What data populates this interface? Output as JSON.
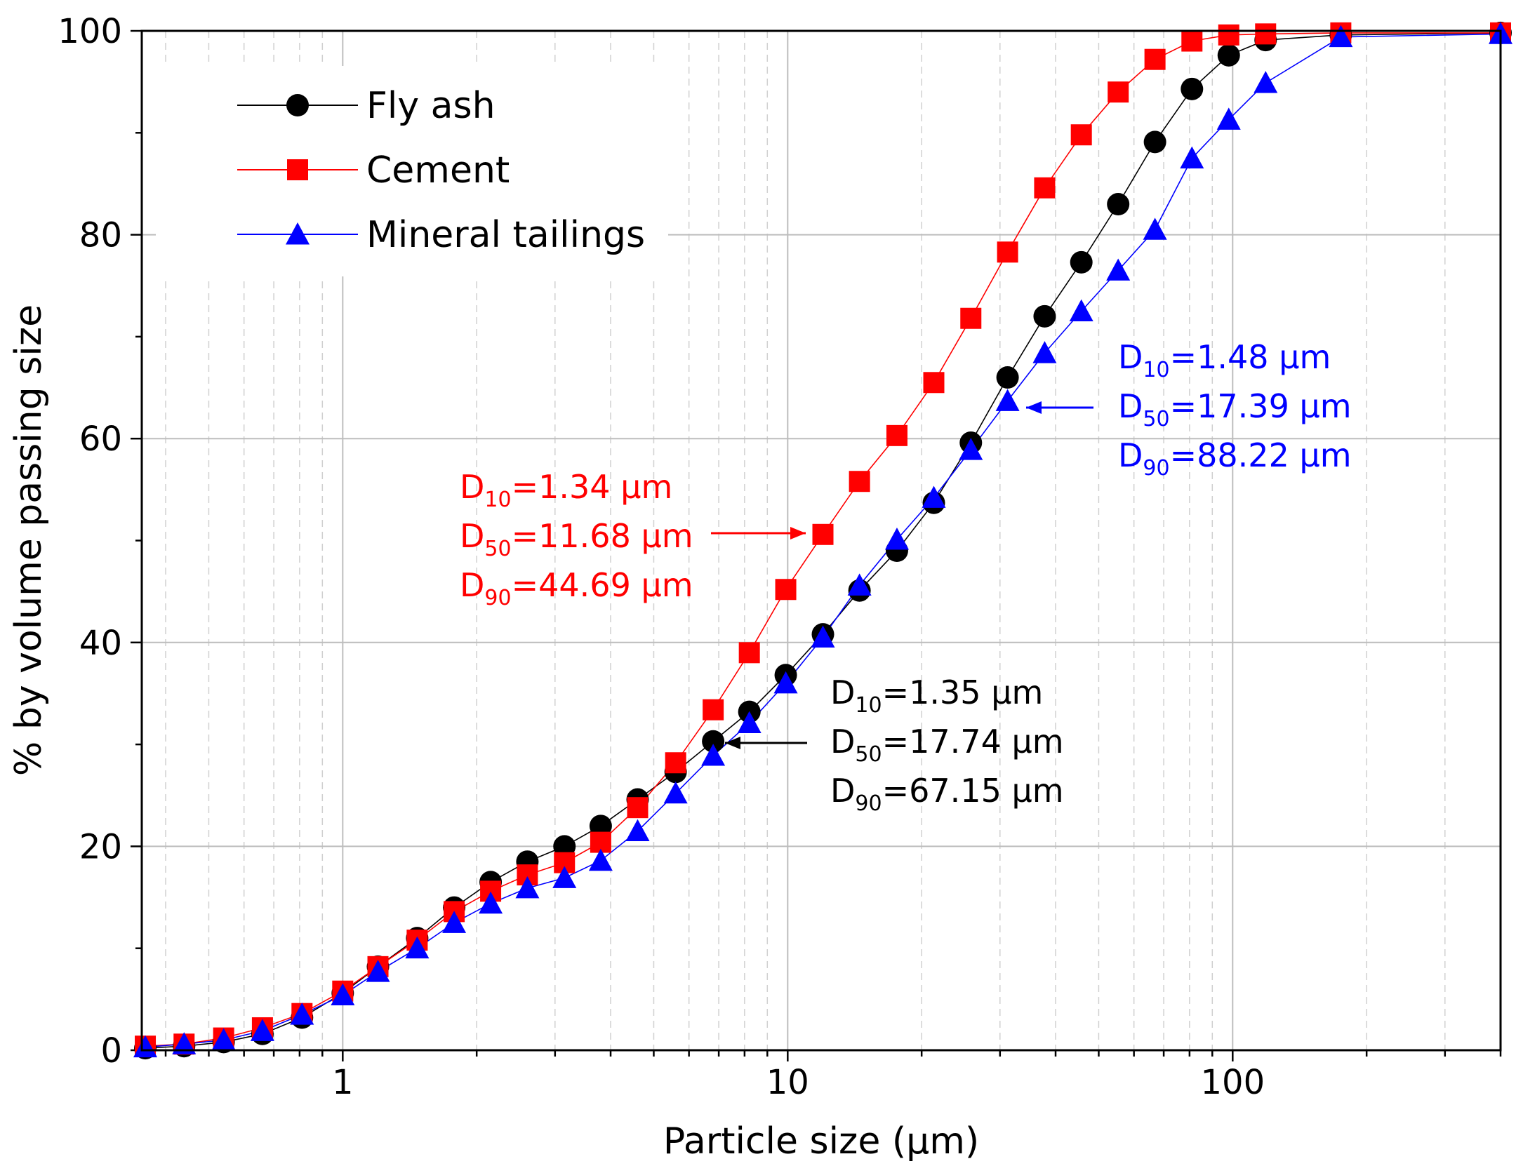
{
  "chart_data": {
    "type": "scatter",
    "title": "",
    "xlabel": "Particle size (µm)",
    "ylabel": "% by volume passing size",
    "xscale": "log",
    "xlim": [
      0.3535,
      400
    ],
    "ylim": [
      0,
      100
    ],
    "x_tick_labels": [
      "1",
      "10",
      "100"
    ],
    "y_tick_labels": [
      "0",
      "20",
      "40",
      "60",
      "80",
      "100"
    ],
    "grid": true,
    "legend_position": "top-left",
    "series": [
      {
        "name": "Fly ash",
        "color": "#000000",
        "marker": "circle",
        "points": [
          [
            0.36,
            0.2
          ],
          [
            0.44,
            0.4
          ],
          [
            0.54,
            0.8
          ],
          [
            0.66,
            1.6
          ],
          [
            0.81,
            3.2
          ],
          [
            1.0,
            5.6
          ],
          [
            1.2,
            8.2
          ],
          [
            1.47,
            11.0
          ],
          [
            1.78,
            14.0
          ],
          [
            2.15,
            16.5
          ],
          [
            2.6,
            18.5
          ],
          [
            3.15,
            20.0
          ],
          [
            3.8,
            22.0
          ],
          [
            4.6,
            24.6
          ],
          [
            5.6,
            27.3
          ],
          [
            6.8,
            30.3
          ],
          [
            8.2,
            33.2
          ],
          [
            9.9,
            36.8
          ],
          [
            12.0,
            40.8
          ],
          [
            14.5,
            45.1
          ],
          [
            17.6,
            49.0
          ],
          [
            21.3,
            53.7
          ],
          [
            25.8,
            59.6
          ],
          [
            31.2,
            66.0
          ],
          [
            37.8,
            72.0
          ],
          [
            45.7,
            77.3
          ],
          [
            55.3,
            83.0
          ],
          [
            66.9,
            89.1
          ],
          [
            81.0,
            94.3
          ],
          [
            98.0,
            97.6
          ],
          [
            118.6,
            99.1
          ],
          [
            175,
            99.6
          ],
          [
            400,
            99.8
          ]
        ]
      },
      {
        "name": "Cement",
        "color": "#ff0000",
        "marker": "square",
        "points": [
          [
            0.36,
            0.4
          ],
          [
            0.44,
            0.6
          ],
          [
            0.54,
            1.2
          ],
          [
            0.66,
            2.2
          ],
          [
            0.81,
            3.6
          ],
          [
            1.0,
            5.8
          ],
          [
            1.2,
            8.2
          ],
          [
            1.47,
            10.8
          ],
          [
            1.78,
            13.6
          ],
          [
            2.15,
            15.6
          ],
          [
            2.6,
            17.2
          ],
          [
            3.15,
            18.4
          ],
          [
            3.8,
            20.4
          ],
          [
            4.6,
            23.8
          ],
          [
            5.6,
            28.2
          ],
          [
            6.8,
            33.4
          ],
          [
            8.2,
            39.0
          ],
          [
            9.9,
            45.2
          ],
          [
            12.0,
            50.6
          ],
          [
            14.5,
            55.8
          ],
          [
            17.6,
            60.3
          ],
          [
            21.3,
            65.5
          ],
          [
            25.8,
            71.8
          ],
          [
            31.2,
            78.3
          ],
          [
            37.8,
            84.6
          ],
          [
            45.7,
            89.8
          ],
          [
            55.3,
            94.0
          ],
          [
            66.9,
            97.2
          ],
          [
            81.0,
            99.0
          ],
          [
            98.0,
            99.6
          ],
          [
            118.6,
            99.7
          ],
          [
            175,
            99.8
          ],
          [
            400,
            99.8
          ]
        ]
      },
      {
        "name": "Mineral tailings",
        "color": "#0000ff",
        "marker": "triangle",
        "points": [
          [
            0.36,
            0.3
          ],
          [
            0.44,
            0.6
          ],
          [
            0.54,
            1.0
          ],
          [
            0.66,
            1.9
          ],
          [
            0.81,
            3.5
          ],
          [
            1.0,
            5.4
          ],
          [
            1.2,
            7.7
          ],
          [
            1.47,
            10.0
          ],
          [
            1.78,
            12.5
          ],
          [
            2.15,
            14.4
          ],
          [
            2.6,
            15.9
          ],
          [
            3.15,
            16.9
          ],
          [
            3.8,
            18.6
          ],
          [
            4.6,
            21.5
          ],
          [
            5.6,
            25.2
          ],
          [
            6.8,
            28.9
          ],
          [
            8.2,
            32.1
          ],
          [
            9.9,
            36.0
          ],
          [
            12.0,
            40.5
          ],
          [
            14.5,
            45.6
          ],
          [
            17.6,
            50.1
          ],
          [
            21.3,
            54.2
          ],
          [
            25.8,
            58.9
          ],
          [
            31.2,
            63.7
          ],
          [
            37.8,
            68.4
          ],
          [
            45.7,
            72.5
          ],
          [
            55.3,
            76.5
          ],
          [
            66.9,
            80.5
          ],
          [
            81.0,
            87.5
          ],
          [
            98.0,
            91.3
          ],
          [
            118.6,
            94.9
          ],
          [
            175,
            99.4
          ],
          [
            400,
            99.7
          ]
        ]
      }
    ],
    "annotations": [
      {
        "series": "Cement",
        "color": "#ff0000",
        "lines": [
          {
            "pre": "D",
            "sub": "10",
            "post": "=1.34 µm"
          },
          {
            "pre": "D",
            "sub": "50",
            "post": "=11.68 µm"
          },
          {
            "pre": "D",
            "sub": "90",
            "post": "=44.69 µm"
          }
        ]
      },
      {
        "series": "Mineral tailings",
        "color": "#0000ff",
        "lines": [
          {
            "pre": "D",
            "sub": "10",
            "post": "=1.48 µm"
          },
          {
            "pre": "D",
            "sub": "50",
            "post": "=17.39 µm"
          },
          {
            "pre": "D",
            "sub": "90",
            "post": "=88.22 µm"
          }
        ]
      },
      {
        "series": "Fly ash",
        "color": "#000000",
        "lines": [
          {
            "pre": "D",
            "sub": "10",
            "post": "=1.35 µm"
          },
          {
            "pre": "D",
            "sub": "50",
            "post": "=17.74 µm"
          },
          {
            "pre": "D",
            "sub": "90",
            "post": "=67.15 µm"
          }
        ]
      }
    ]
  }
}
